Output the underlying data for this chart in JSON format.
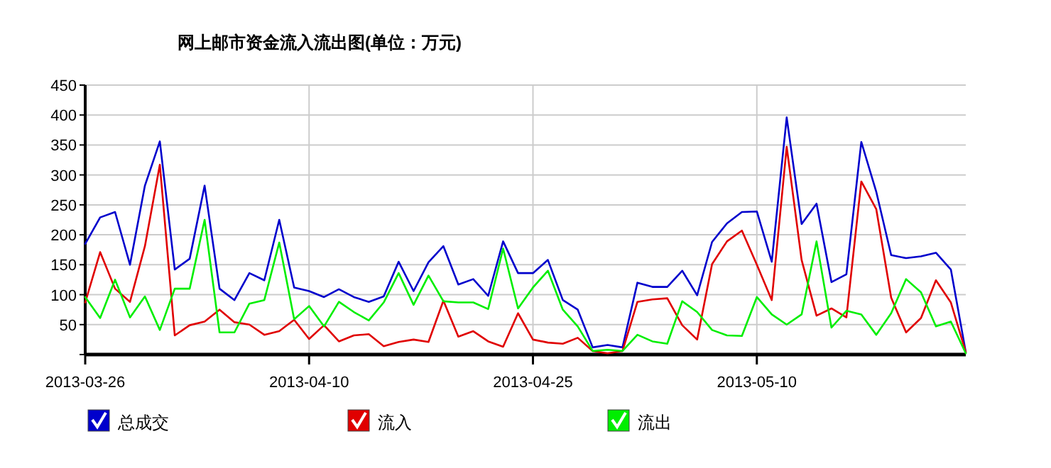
{
  "chart_data": {
    "type": "line",
    "title": "网上邮市资金流入流出图(单位：万元)",
    "x": [
      "2013-03-26",
      "2013-03-27",
      "2013-03-28",
      "2013-03-29",
      "2013-03-30",
      "2013-03-31",
      "2013-04-01",
      "2013-04-02",
      "2013-04-03",
      "2013-04-04",
      "2013-04-05",
      "2013-04-06",
      "2013-04-07",
      "2013-04-08",
      "2013-04-09",
      "2013-04-10",
      "2013-04-11",
      "2013-04-12",
      "2013-04-13",
      "2013-04-14",
      "2013-04-15",
      "2013-04-16",
      "2013-04-17",
      "2013-04-18",
      "2013-04-19",
      "2013-04-20",
      "2013-04-21",
      "2013-04-22",
      "2013-04-23",
      "2013-04-24",
      "2013-04-25",
      "2013-04-26",
      "2013-04-27",
      "2013-04-28",
      "2013-04-29",
      "2013-04-30",
      "2013-05-01",
      "2013-05-02",
      "2013-05-03",
      "2013-05-04",
      "2013-05-05",
      "2013-05-06",
      "2013-05-07",
      "2013-05-08",
      "2013-05-09",
      "2013-05-10",
      "2013-05-11",
      "2013-05-12",
      "2013-05-13",
      "2013-05-14",
      "2013-05-15",
      "2013-05-16",
      "2013-05-17",
      "2013-05-18",
      "2013-05-19",
      "2013-05-20",
      "2013-05-21",
      "2013-05-22",
      "2013-05-23",
      "2013-05-24"
    ],
    "series": [
      {
        "name": "总成交",
        "color": "#0000cc",
        "values": [
          185,
          229,
          238,
          150,
          282,
          356,
          142,
          160,
          282,
          110,
          91,
          136,
          124,
          225,
          112,
          106,
          96,
          109,
          96,
          88,
          97,
          155,
          106,
          154,
          181,
          117,
          126,
          98,
          189,
          136,
          136,
          158,
          91,
          75,
          12,
          16,
          12,
          120,
          113,
          113,
          140,
          99,
          188,
          219,
          238,
          239,
          155,
          396,
          218,
          252,
          121,
          134,
          355,
          272,
          166,
          161,
          164,
          170,
          142,
          4
        ]
      },
      {
        "name": "流入",
        "color": "#e00000",
        "values": [
          87,
          171,
          110,
          88,
          181,
          317,
          32,
          49,
          55,
          75,
          54,
          50,
          33,
          39,
          58,
          26,
          49,
          22,
          32,
          34,
          14,
          21,
          25,
          21,
          90,
          30,
          39,
          22,
          13,
          69,
          25,
          20,
          18,
          28,
          6,
          2,
          6,
          88,
          92,
          94,
          49,
          25,
          151,
          189,
          207,
          150,
          91,
          347,
          158,
          65,
          77,
          62,
          289,
          243,
          95,
          37,
          61,
          124,
          87,
          4
        ]
      },
      {
        "name": "流出",
        "color": "#00ee00",
        "values": [
          96,
          61,
          125,
          62,
          97,
          41,
          110,
          110,
          225,
          37,
          37,
          85,
          91,
          187,
          59,
          81,
          47,
          88,
          71,
          57,
          87,
          136,
          83,
          132,
          89,
          87,
          87,
          76,
          177,
          77,
          112,
          140,
          75,
          47,
          6,
          8,
          6,
          33,
          22,
          18,
          89,
          71,
          41,
          32,
          31,
          96,
          67,
          50,
          67,
          189,
          45,
          73,
          67,
          33,
          69,
          126,
          104,
          47,
          55,
          2
        ]
      }
    ],
    "xlim": [
      "2013-03-26",
      "2013-05-24"
    ],
    "xticks": [
      "2013-03-26",
      "2013-04-10",
      "2013-04-25",
      "2013-05-10"
    ],
    "ylim": [
      0,
      450
    ],
    "yticks": [
      {
        "value": 0,
        "label": null
      },
      50,
      100,
      150,
      200,
      250,
      300,
      350,
      400,
      450
    ],
    "grid": true,
    "legend": "bottom"
  }
}
